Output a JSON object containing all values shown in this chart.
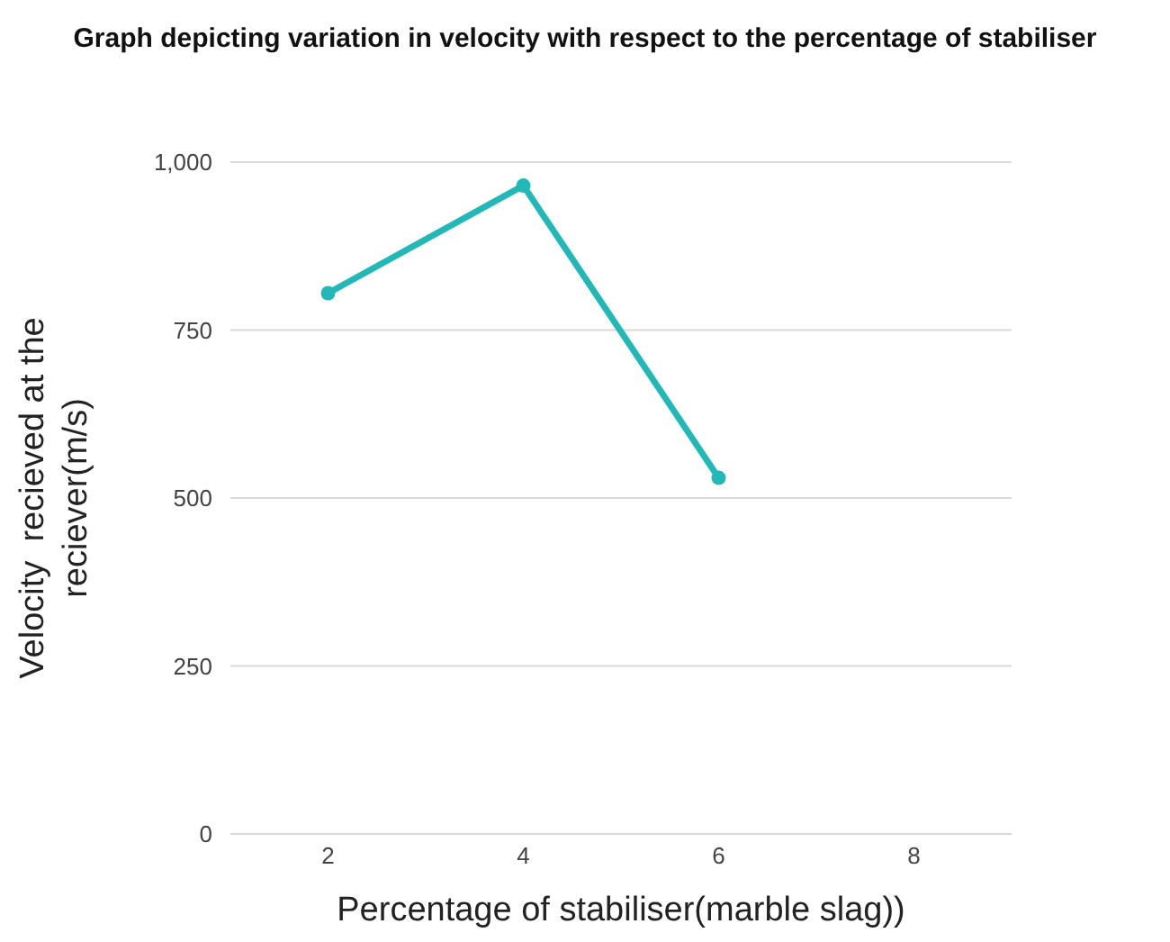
{
  "chart_data": {
    "type": "line",
    "title": "Graph depicting variation in velocity with respect to the percentage of stabiliser",
    "xlabel": "Percentage of stabiliser(marble slag))",
    "ylabel": "Velocity  recieved at the reciever(m/s)",
    "categories": [
      "2",
      "4",
      "6",
      "8"
    ],
    "series": [
      {
        "color": "#22b8b8",
        "values": [
          805,
          965,
          530,
          null
        ]
      }
    ],
    "ylim": [
      0,
      1000
    ],
    "yticks": [
      0,
      {
        "value": 250,
        "label": "250"
      },
      {
        "value": 500,
        "label": "500"
      },
      {
        "value": 750,
        "label": "750"
      },
      {
        "value": 1000,
        "label": "1,000"
      }
    ],
    "grid": "y",
    "marker": "circle",
    "line_style": "solid"
  }
}
